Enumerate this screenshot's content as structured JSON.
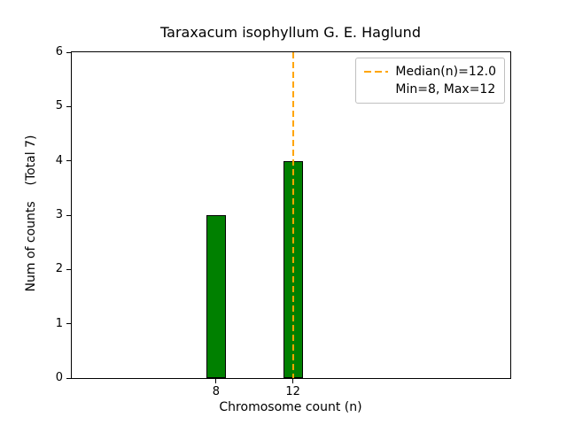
{
  "chart_data": {
    "type": "bar",
    "title": "Taraxacum isophyllum G. E. Haglund",
    "xlabel": "Chromosome count (n)",
    "ylabel": "Num of counts    (Total 7)",
    "total_counts": 7,
    "bars": [
      {
        "x": 8,
        "count": 3
      },
      {
        "x": 12,
        "count": 4
      }
    ],
    "bar_width": 1,
    "bar_color": "#008000",
    "bar_edge_color": "#000000",
    "median_line": {
      "x": 12.0,
      "color": "#FFA500",
      "style": "dashed"
    },
    "xlim": [
      0.5,
      23.3
    ],
    "ylim": [
      0,
      6
    ],
    "xticks": [
      "8",
      "12"
    ],
    "yticks": [
      "0",
      "1",
      "2",
      "3",
      "4",
      "5",
      "6"
    ],
    "grid": false,
    "legend": {
      "position": "upper right",
      "entries": [
        {
          "label": "Median(n)=12.0",
          "handle": "dashed-orange-line"
        },
        {
          "label": "Min=8, Max=12",
          "handle": "none"
        }
      ]
    }
  }
}
